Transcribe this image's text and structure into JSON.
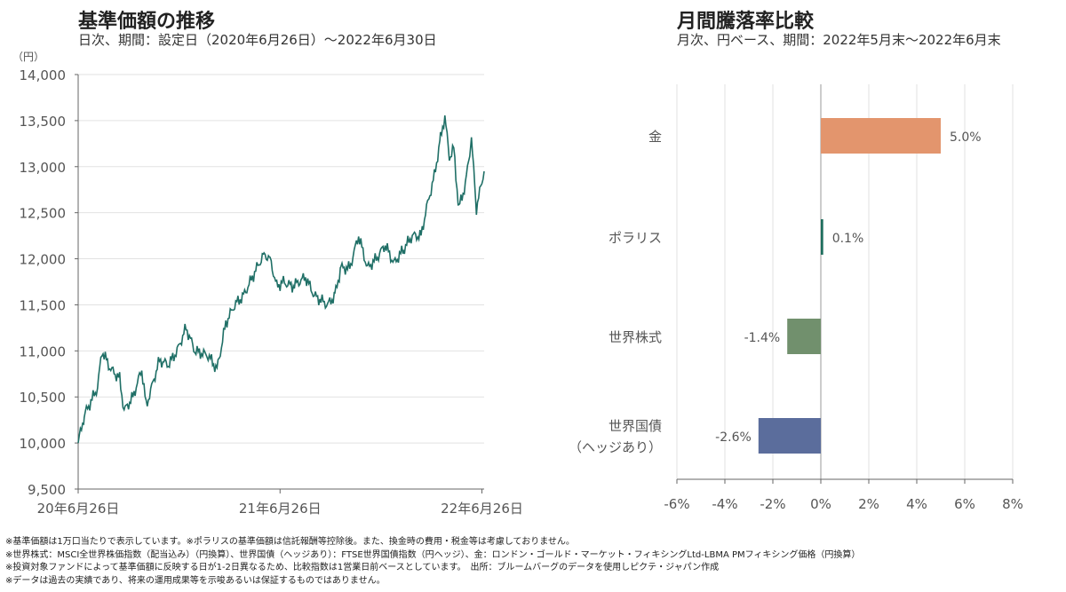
{
  "left": {
    "title": "基準価額の推移",
    "subtitle": "日次、期間：設定日（2020年6月26日）～2022年6月30日"
  },
  "right": {
    "title": "月間騰落率比較",
    "subtitle": "月次、円ベース、期間：2022年5月末～2022年6月末"
  },
  "chart_data": [
    {
      "type": "line",
      "title": "基準価額の推移",
      "ylabel": "（円）",
      "ylim": [
        9500,
        14000
      ],
      "yticks": [
        "9,500",
        "10,000",
        "10,500",
        "11,000",
        "11,500",
        "12,000",
        "12,500",
        "13,000",
        "13,500",
        "14,000"
      ],
      "xticks": [
        "20年6月26日",
        "21年6月26日",
        "22年6月26日"
      ],
      "x_unit": "days since 2020-06-26",
      "series": [
        {
          "name": "基準価額",
          "color": "#1f6f66",
          "x": [
            0,
            11,
            35,
            43,
            59,
            75,
            83,
            99,
            115,
            123,
            147,
            163,
            179,
            195,
            211,
            235,
            251,
            267,
            283,
            299,
            323,
            336,
            347,
            359,
            371,
            387,
            411,
            427,
            451,
            464,
            475,
            491,
            507,
            523,
            539,
            555,
            571,
            588,
            604,
            620,
            628,
            644,
            655,
            663,
            671,
            679,
            688,
            700,
            711,
            720,
            734
          ],
          "y": [
            10000,
            10300,
            10600,
            11000,
            10800,
            10700,
            10350,
            10500,
            10800,
            10400,
            10900,
            10850,
            11000,
            11250,
            11000,
            10950,
            10800,
            11300,
            11500,
            11600,
            11900,
            12050,
            12000,
            11700,
            11750,
            11700,
            11800,
            11600,
            11500,
            11600,
            11900,
            11900,
            12250,
            11900,
            12000,
            12150,
            11950,
            12100,
            12250,
            12250,
            12500,
            12900,
            13300,
            13550,
            13100,
            13200,
            12550,
            12800,
            13300,
            12550,
            12950
          ]
        }
      ]
    },
    {
      "type": "bar",
      "orientation": "horizontal",
      "title": "月間騰落率比較",
      "categories": [
        "金",
        "ポラリス",
        "世界株式",
        "世界国債\n（ヘッジあり）"
      ],
      "values": [
        5.0,
        0.1,
        -1.4,
        -2.6
      ],
      "labels": [
        "5.0%",
        "0.1%",
        "-1.4%",
        "-2.6%"
      ],
      "colors": [
        "#e3956d",
        "#1f6f5e",
        "#71906d",
        "#5b6d9c"
      ],
      "xlim": [
        -6,
        8
      ],
      "xticks": [
        "-6%",
        "-4%",
        "-2%",
        "0%",
        "2%",
        "4%",
        "6%",
        "8%"
      ]
    }
  ],
  "notes": [
    "※基準価額は1万口当たりで表示しています。※ポラリスの基準価額は信託報酬等控除後。また、換金時の費用・税金等は考慮しておりません。",
    "※世界株式：MSCI全世界株価指数（配当込み）（円換算）、世界国債（ヘッジあり）：FTSE世界国債指数（円ヘッジ）、金：ロンドン・ゴールド・マーケット・フィキシングLtd-LBMA PMフィキシング価格（円換算）",
    "※投資対象ファンドによって基準価額に反映する日が1-2日異なるため、比較指数は1営業日前ベースとしています。　出所：ブルームバーグのデータを使用しピクテ・ジャパン作成",
    "※データは過去の実績であり、将来の運用成果等を示唆あるいは保証するものではありません。"
  ]
}
